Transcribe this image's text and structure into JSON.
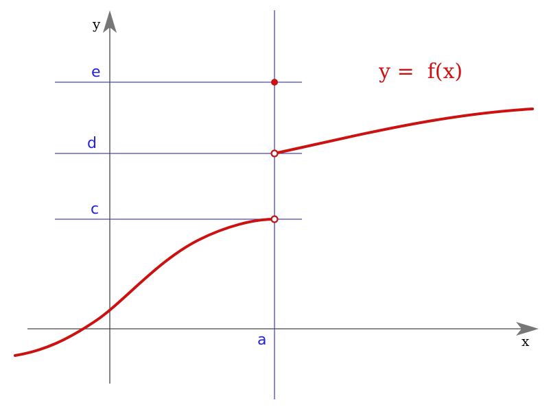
{
  "diagram": {
    "axes": {
      "x_label": "x",
      "y_label": "y"
    },
    "guides": {
      "vertical_label": "a",
      "horizontal_labels": [
        "c",
        "d",
        "e"
      ]
    },
    "function_label": "y =  f(x)",
    "colors": {
      "axis": "#444444",
      "guide_line": "#4444cc",
      "guide_text": "#2222dd",
      "curve": "#cc1111",
      "arrow_head": "#777777"
    },
    "description": {
      "left_branch_ends_at": "c",
      "right_branch_starts_at": "d",
      "function_value_at_a": "e",
      "open_points": [
        "c",
        "d"
      ],
      "filled_point": "e"
    }
  }
}
